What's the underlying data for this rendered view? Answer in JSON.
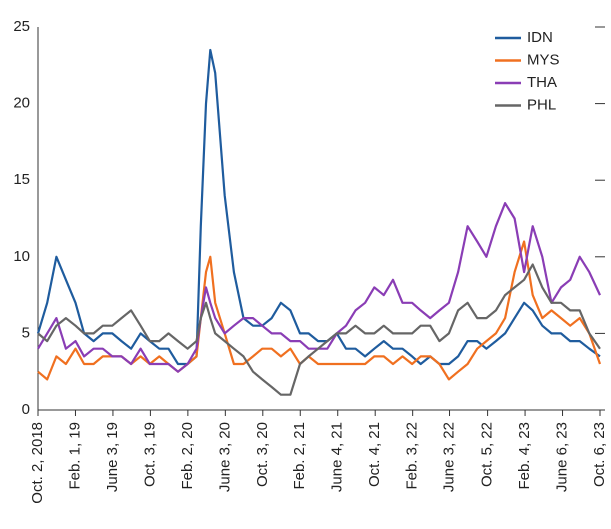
{
  "chart_data": {
    "type": "line",
    "x": [
      "2018-10-02",
      "2018-11-01",
      "2018-12-01",
      "2019-01-01",
      "2019-02-01",
      "2019-03-01",
      "2019-04-01",
      "2019-05-01",
      "2019-06-01",
      "2019-07-01",
      "2019-08-01",
      "2019-09-01",
      "2019-10-01",
      "2019-11-01",
      "2019-12-01",
      "2020-01-01",
      "2020-02-01",
      "2020-03-01",
      "2020-03-15",
      "2020-04-01",
      "2020-04-15",
      "2020-05-01",
      "2020-06-01",
      "2020-07-01",
      "2020-08-01",
      "2020-09-01",
      "2020-10-01",
      "2020-11-01",
      "2020-12-01",
      "2021-01-01",
      "2021-02-01",
      "2021-03-01",
      "2021-04-01",
      "2021-05-01",
      "2021-06-01",
      "2021-07-01",
      "2021-08-01",
      "2021-09-01",
      "2021-10-01",
      "2021-11-01",
      "2021-12-01",
      "2022-01-01",
      "2022-02-01",
      "2022-03-01",
      "2022-04-01",
      "2022-05-01",
      "2022-06-01",
      "2022-07-01",
      "2022-08-01",
      "2022-09-01",
      "2022-10-01",
      "2022-11-01",
      "2022-12-01",
      "2023-01-01",
      "2023-02-01",
      "2023-03-01",
      "2023-04-01",
      "2023-05-01",
      "2023-06-01",
      "2023-07-01",
      "2023-08-01",
      "2023-09-01",
      "2023-10-06"
    ],
    "series": [
      {
        "name": "IDN",
        "color": "#1f5c9e",
        "values": [
          5,
          7,
          10,
          8.5,
          7,
          5,
          4.5,
          5,
          5,
          4.5,
          4,
          5,
          4.5,
          4,
          4,
          3,
          3,
          3.5,
          12,
          20,
          23.5,
          22,
          14,
          9,
          6,
          5.5,
          5.5,
          6,
          7,
          6.5,
          5,
          5,
          4.5,
          4.5,
          5,
          4,
          4,
          3.5,
          4,
          4.5,
          4,
          4,
          3.5,
          3,
          3.5,
          3,
          3,
          3.5,
          4.5,
          4.5,
          4,
          4.5,
          5,
          6,
          7,
          6.5,
          5.5,
          5,
          5,
          4.5,
          4.5,
          4,
          3.5
        ]
      },
      {
        "name": "MYS",
        "color": "#f07020",
        "values": [
          2.5,
          2,
          3.5,
          3,
          4,
          3,
          3,
          3.5,
          3.5,
          3.5,
          3,
          3.5,
          3,
          3.5,
          3,
          2.5,
          3,
          3.5,
          6,
          9,
          10,
          7,
          5,
          3,
          3,
          3.5,
          4,
          4,
          3.5,
          4,
          3,
          3.5,
          3,
          3,
          3,
          3,
          3,
          3,
          3.5,
          3.5,
          3,
          3.5,
          3,
          3.5,
          3.5,
          3,
          2,
          2.5,
          3,
          4,
          4.5,
          5,
          6,
          9,
          11,
          7.5,
          6,
          6.5,
          6,
          5.5,
          6,
          5,
          3
        ]
      },
      {
        "name": "THA",
        "color": "#8a3db5",
        "values": [
          4,
          5,
          6,
          4,
          4.5,
          3.5,
          4,
          4,
          3.5,
          3.5,
          3,
          4,
          3,
          3,
          3,
          2.5,
          3,
          4,
          6,
          8,
          7,
          6,
          5,
          5.5,
          6,
          6,
          5.5,
          5,
          5,
          4.5,
          4.5,
          4,
          4,
          4,
          5,
          5.5,
          6.5,
          7,
          8,
          7.5,
          8.5,
          7,
          7,
          6.5,
          6,
          6.5,
          7,
          9,
          12,
          11,
          10,
          12,
          13.5,
          12.5,
          9,
          12,
          10,
          7,
          8,
          8.5,
          10,
          9,
          7.5
        ]
      },
      {
        "name": "PHL",
        "color": "#666666",
        "values": [
          5,
          4.5,
          5.5,
          6,
          5.5,
          5,
          5,
          5.5,
          5.5,
          6,
          6.5,
          5.5,
          4.5,
          4.5,
          5,
          4.5,
          4,
          4.5,
          6,
          7,
          6,
          5,
          4.5,
          4,
          3.5,
          2.5,
          2,
          1.5,
          1,
          1,
          3,
          3.5,
          4,
          4.5,
          5,
          5,
          5.5,
          5,
          5,
          5.5,
          5,
          5,
          5,
          5.5,
          5.5,
          4.5,
          5,
          6.5,
          7,
          6,
          6,
          6.5,
          7.5,
          8,
          8.5,
          9.5,
          8,
          7,
          7,
          6.5,
          6.5,
          5,
          4
        ]
      }
    ],
    "xlim": [
      "2018-10-02",
      "2023-10-06"
    ],
    "xticks": [
      {
        "value": "2018-10-02",
        "label": "Oct. 2, 2018"
      },
      {
        "value": "2019-02-01",
        "label": "Feb. 1, 19"
      },
      {
        "value": "2019-06-03",
        "label": "June 3, 19"
      },
      {
        "value": "2019-10-03",
        "label": "Oct. 3, 19"
      },
      {
        "value": "2020-02-02",
        "label": "Feb. 2, 20"
      },
      {
        "value": "2020-06-03",
        "label": "June 3, 20"
      },
      {
        "value": "2020-10-03",
        "label": "Oct. 3, 20"
      },
      {
        "value": "2021-02-02",
        "label": "Feb. 2, 21"
      },
      {
        "value": "2021-06-04",
        "label": "June 4, 21"
      },
      {
        "value": "2021-10-04",
        "label": "Oct. 4, 21"
      },
      {
        "value": "2022-02-03",
        "label": "Feb. 3, 22"
      },
      {
        "value": "2022-06-03",
        "label": "June 3, 22"
      },
      {
        "value": "2022-10-05",
        "label": "Oct. 5, 22"
      },
      {
        "value": "2023-02-04",
        "label": "Feb. 4, 23"
      },
      {
        "value": "2023-06-06",
        "label": "June 6, 23"
      },
      {
        "value": "2023-10-06",
        "label": "Oct. 6, 23"
      }
    ],
    "ylim": [
      0,
      25
    ],
    "yticks": [
      0,
      5,
      10,
      15,
      20,
      25
    ],
    "legend": "top-right"
  }
}
